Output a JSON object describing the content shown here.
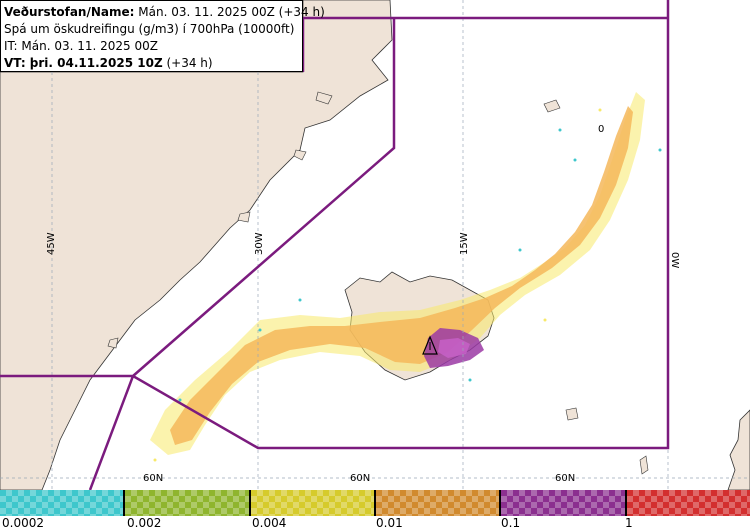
{
  "header": {
    "line1_bold": "Veðurstofan/Name:",
    "line1_rest": "Mán. 03. 11. 2025 00Z (+34 h)",
    "line2": "Spá um öskudreifingu (g/m3) í 700hPa (10000ft)",
    "line3": "IT: Mán. 03. 11. 2025 00Z",
    "line4_bold": "VT: þri. 04.11.2025 10Z",
    "line4_rest": "(+34 h)"
  },
  "grid_labels": {
    "lon_45w": "45W",
    "lon_30w": "30W",
    "lon_15w": "15W",
    "lon_0w": "0W",
    "lat_60n_a": "60N",
    "lat_60n_b": "60N",
    "lat_60n_c": "60N",
    "plume_marker": "0"
  },
  "legend": {
    "labels": [
      "0.0002",
      "0.002",
      "0.004",
      "0.01",
      "0.1",
      "1"
    ],
    "colors": [
      "#3ec7cc",
      "#8fb52e",
      "#d6cb2c",
      "#d18a2e",
      "#8b2f8f",
      "#d32f2f"
    ]
  },
  "colors": {
    "land": "#efe3d7",
    "sea": "#ffffff",
    "boundary": "#7b1b7e",
    "plume_low": "#f7e96a",
    "plume_mid": "#f5b75a",
    "plume_high": "#9b3aa5"
  },
  "icons": {
    "volcano": "volcano-triangle-icon"
  }
}
